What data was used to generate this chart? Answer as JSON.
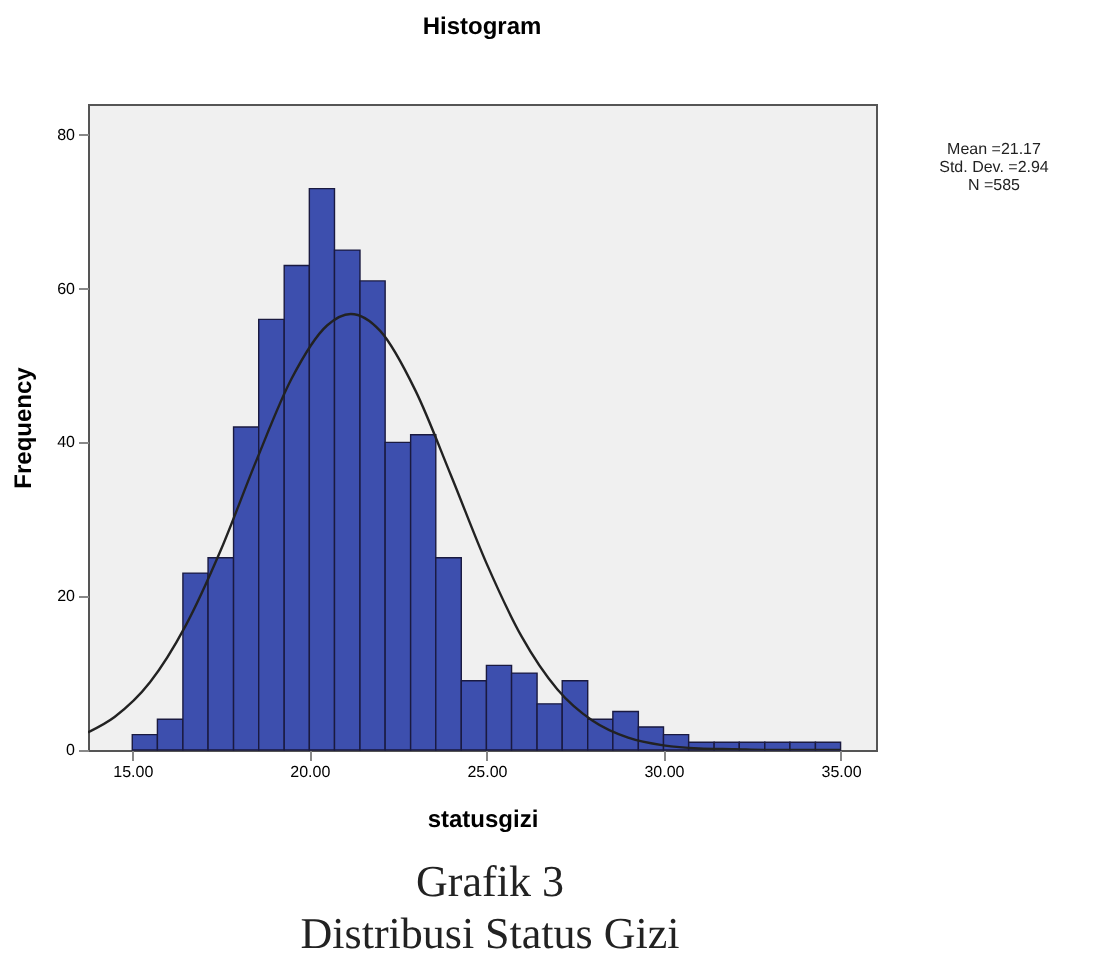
{
  "chart_data": {
    "type": "histogram",
    "title": "Histogram",
    "xlabel": "statusgizi",
    "ylabel": "Frequency",
    "xlim": [
      13.75,
      36
    ],
    "ylim": [
      0,
      84
    ],
    "xticks": [
      {
        "value": 15,
        "label": "15.00"
      },
      {
        "value": 20,
        "label": "20.00"
      },
      {
        "value": 25,
        "label": "25.00"
      },
      {
        "value": 30,
        "label": "30.00"
      },
      {
        "value": 35,
        "label": "35.00"
      }
    ],
    "yticks": [
      0,
      20,
      40,
      60,
      80
    ],
    "series": [
      {
        "type": "histogram",
        "color": "#3d4fae",
        "bins": [
          15,
          15.71,
          16.43,
          17.14,
          17.86,
          18.57,
          19.29,
          20,
          20.71,
          21.43,
          22.14,
          22.86,
          23.57,
          24.29,
          25,
          25.71,
          26.43,
          27.14,
          27.86,
          28.57,
          29.29,
          30,
          30.71,
          31.43,
          32.14,
          32.86,
          33.57,
          34.29,
          35
        ],
        "values": [
          2,
          4,
          23,
          25,
          42,
          56,
          63,
          73,
          65,
          61,
          40,
          41,
          25,
          9,
          11,
          10,
          6,
          9,
          4,
          5,
          3,
          2,
          1,
          1,
          1,
          1,
          1,
          1
        ]
      },
      {
        "type": "line",
        "color": "#222222",
        "x": [
          13.75,
          14.5,
          15.5,
          16.5,
          17.5,
          18.5,
          19.5,
          20.5,
          21.17,
          22,
          23,
          24,
          25,
          26,
          27,
          28,
          29,
          30,
          31,
          32,
          33,
          34,
          35
        ],
        "values": [
          2.3,
          4.3,
          8.8,
          16.1,
          26,
          37.6,
          48.3,
          55.2,
          56.7,
          54.5,
          46.7,
          35.7,
          24.3,
          14.7,
          7.9,
          3.8,
          1.6,
          0.6,
          0.2,
          0.1,
          0,
          0,
          0
        ]
      }
    ],
    "grid": false,
    "annotations": [
      "Mean =21.17",
      "Std. Dev. =2.94",
      "N =585",
      "Grafik 3",
      "Distribusi Status Gizi"
    ]
  }
}
